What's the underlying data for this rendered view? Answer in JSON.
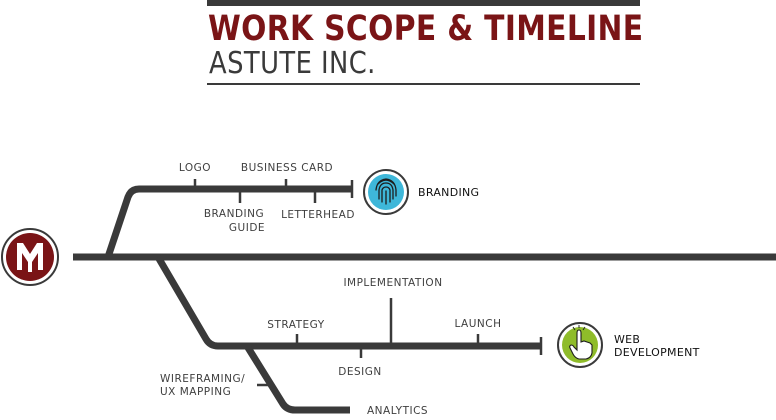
{
  "header": {
    "title": "WORK SCOPE & TIMELINE",
    "subtitle": "ASTUTE INC."
  },
  "logo": {
    "letter": "M"
  },
  "branding": {
    "end_label": "BRANDING",
    "icon": "fingerprint-icon",
    "milestones": {
      "logo": "LOGO",
      "business_card": "BUSINESS CARD",
      "branding_guide_1": "BRANDING",
      "branding_guide_2": "GUIDE",
      "letterhead": "LETTERHEAD"
    }
  },
  "web": {
    "end_label_1": "WEB",
    "end_label_2": "DEVELOPMENT",
    "icon": "pointing-hand-icon",
    "milestones": {
      "implementation": "IMPLEMENTATION",
      "strategy": "STRATEGY",
      "launch": "LAUNCH",
      "design": "DESIGN",
      "wireframing_1": "WIREFRAMING/",
      "wireframing_2": "UX MAPPING",
      "analytics": "ANALYTICS"
    }
  },
  "colors": {
    "brand_red": "#7a1416",
    "line": "#3a3a3a",
    "branding_blue": "#3eb7d9",
    "web_green": "#8fbc2a"
  }
}
